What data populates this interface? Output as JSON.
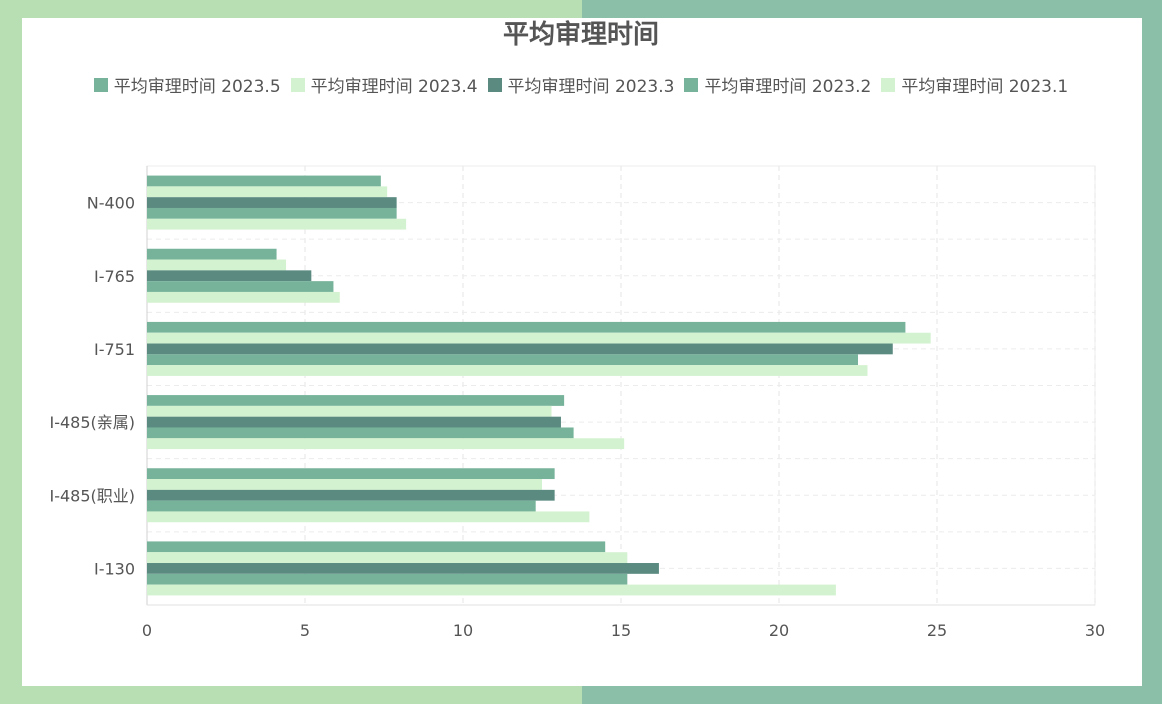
{
  "chart_data": {
    "type": "bar",
    "orientation": "horizontal",
    "title": "平均审理时间",
    "categories": [
      "N-400",
      "I-765",
      "I-751",
      "I-485(亲属)",
      "I-485(职业)",
      "I-130"
    ],
    "series": [
      {
        "name": "平均审理时间 2023.5",
        "color": "#76b39a",
        "values": [
          7.4,
          4.1,
          24.0,
          13.2,
          12.9,
          14.5
        ]
      },
      {
        "name": "平均审理时间 2023.4",
        "color": "#d3f2cf",
        "values": [
          7.6,
          4.4,
          24.8,
          12.8,
          12.5,
          15.2
        ]
      },
      {
        "name": "平均审理时间 2023.3",
        "color": "#5a8a80",
        "values": [
          7.9,
          5.2,
          23.6,
          13.1,
          12.9,
          16.2
        ]
      },
      {
        "name": "平均审理时间 2023.2",
        "color": "#76b39a",
        "values": [
          7.9,
          5.9,
          22.5,
          13.5,
          12.3,
          15.2
        ]
      },
      {
        "name": "平均审理时间 2023.1",
        "color": "#d3f2cf",
        "values": [
          8.2,
          6.1,
          22.8,
          15.1,
          14.0,
          21.8
        ]
      }
    ],
    "x_ticks": [
      "0",
      "5",
      "10",
      "15",
      "20",
      "25",
      "30"
    ],
    "xlim": [
      0,
      30
    ],
    "grid": true,
    "legend_position": "top"
  }
}
